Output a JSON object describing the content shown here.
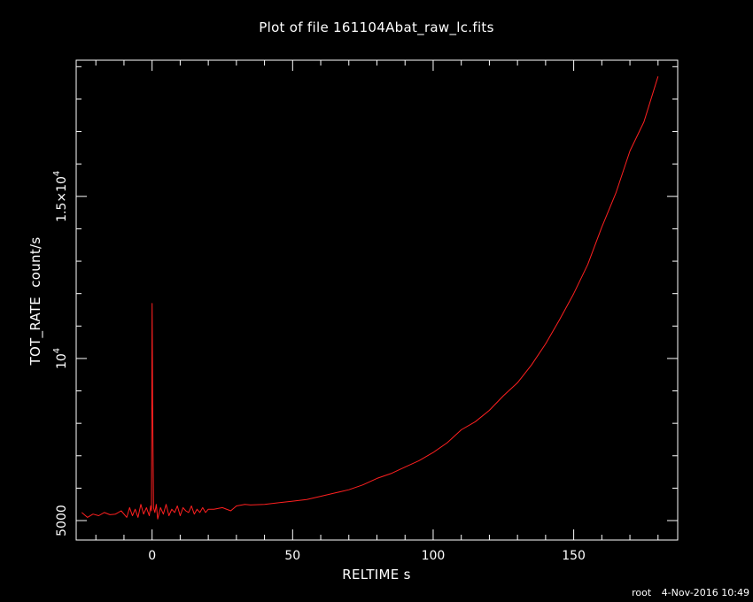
{
  "title": "Plot of file 161104Abat_raw_lc.fits",
  "xlabel": "RELTIME  s",
  "ylabel": "TOT_RATE  count/s",
  "footer": {
    "user": "root",
    "date": "4-Nov-2016 10:49"
  },
  "colors": {
    "background": "#000000",
    "axes": "#ffffff",
    "series": "#ff2020"
  },
  "chart_data": {
    "type": "line",
    "xlim": [
      -27,
      187
    ],
    "ylim": [
      4400,
      19200
    ],
    "x_ticks": [
      {
        "value": 0,
        "label": "0"
      },
      {
        "value": 50,
        "label": "50"
      },
      {
        "value": 100,
        "label": "100"
      },
      {
        "value": 150,
        "label": "150"
      }
    ],
    "y_ticks": [
      {
        "value": 5000,
        "label": "5000"
      },
      {
        "value": 10000,
        "label": "10",
        "sup": "4"
      },
      {
        "value": 15000,
        "label": "1.5×10",
        "sup": "4"
      }
    ],
    "grid": false,
    "series": [
      {
        "x": [
          -25,
          -23,
          -21,
          -19,
          -17,
          -15,
          -13,
          -11,
          -9,
          -8,
          -7,
          -6,
          -5,
          -4,
          -3,
          -2,
          -1,
          -0.5,
          -0.2,
          0,
          0.2,
          0.5,
          1,
          1.5,
          2,
          3,
          4,
          5,
          6,
          7,
          8,
          9,
          10,
          11,
          12,
          13,
          14,
          15,
          16,
          17,
          18,
          19,
          20,
          22,
          25,
          28,
          30,
          33,
          35,
          40,
          45,
          50,
          55,
          60,
          65,
          70,
          75,
          80,
          85,
          90,
          95,
          100,
          105,
          110,
          115,
          120,
          125,
          130,
          135,
          140,
          145,
          150,
          155,
          160,
          165,
          170,
          175,
          180
        ],
        "y": [
          5250,
          5100,
          5200,
          5150,
          5250,
          5180,
          5200,
          5300,
          5100,
          5400,
          5150,
          5350,
          5100,
          5500,
          5200,
          5400,
          5150,
          5450,
          5300,
          11700,
          8600,
          5400,
          5250,
          5500,
          5050,
          5400,
          5200,
          5500,
          5150,
          5350,
          5250,
          5450,
          5150,
          5400,
          5300,
          5250,
          5450,
          5200,
          5350,
          5250,
          5400,
          5250,
          5350,
          5350,
          5400,
          5300,
          5450,
          5500,
          5480,
          5500,
          5550,
          5600,
          5650,
          5750,
          5850,
          5950,
          6100,
          6300,
          6450,
          6650,
          6850,
          7100,
          7400,
          7800,
          8050,
          8400,
          8850,
          9250,
          9800,
          10450,
          11200,
          12000,
          12900,
          14050,
          15100,
          16400,
          17300,
          18700
        ]
      }
    ]
  }
}
